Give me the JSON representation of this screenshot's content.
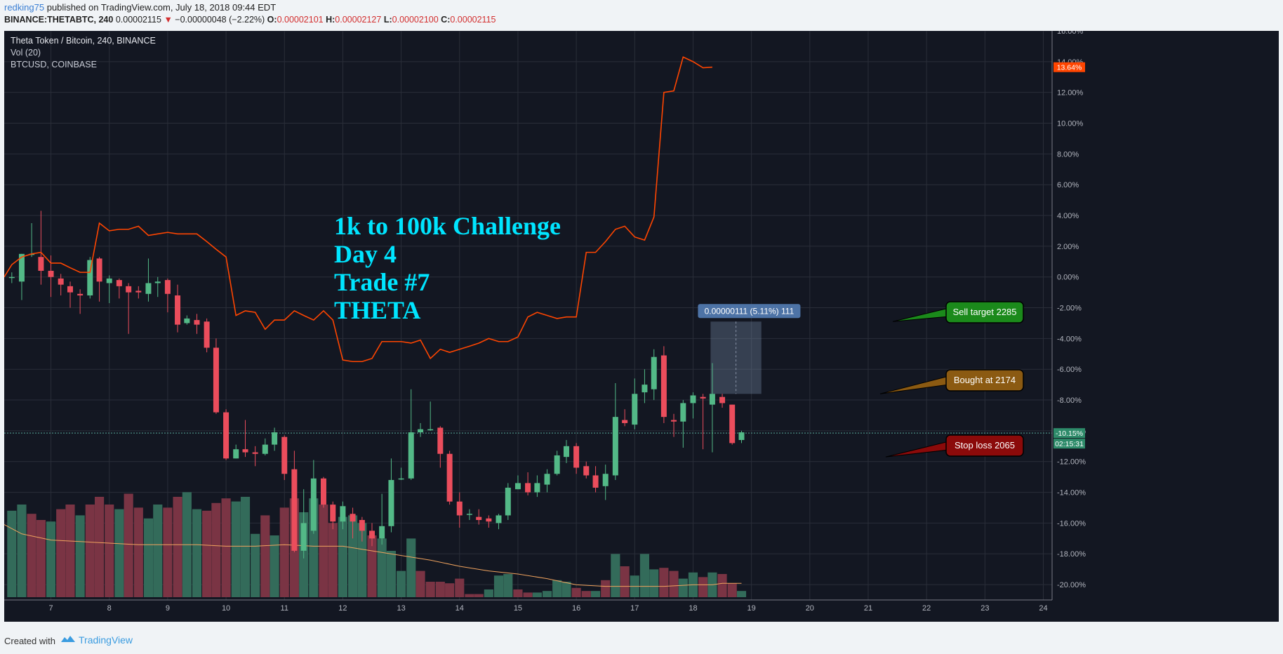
{
  "header": {
    "user": "redking75",
    "published": " published on TradingView.com, July 18, 2018 09:44 EDT",
    "symbol": "BINANCE:THETABTC, 240",
    "last": "0.00002115",
    "arrow": "▼",
    "change": "−0.00000048 (−2.22%)",
    "o_label": "O:",
    "o_value": "0.00002101",
    "h_label": "H:",
    "h_value": "0.00002127",
    "l_label": "L:",
    "l_value": "0.00002100",
    "c_label": "C:",
    "c_value": "0.00002115"
  },
  "legend": {
    "symbol": "Theta Token / Bitcoin, 240, BINANCE",
    "volume": "Vol (20)",
    "compare": "BTCUSD, COINBASE"
  },
  "annotations": {
    "title_lines": [
      "1k to 100k Challenge",
      "Day 4",
      "Trade #7",
      "THETA"
    ],
    "measure": "0.00000111 (5.11%) 111",
    "sell": "Sell target 2285",
    "bought": "Bought at 2174",
    "stop": "Stop loss 2065"
  },
  "price_badge": "-10.15%",
  "countdown": "02:15:31",
  "btc_badge": "13.64%",
  "footer": {
    "created": "Created with",
    "brand": "TradingView"
  },
  "colors": {
    "background": "#131722",
    "up": "#53b987",
    "down": "#eb4d5c",
    "btc_line": "#ff4500",
    "vol_ma": "#f0a35e",
    "title": "#00e5ff",
    "sell_callout": "#1b8a1b",
    "bought_callout": "#8b5a12",
    "stop_callout": "#8b0a0a"
  },
  "chart_data": {
    "type": "candlestick",
    "y_axis_unit": "percent",
    "ylim": [
      -21,
      16
    ],
    "y_ticks": [
      "16.00%",
      "14.00%",
      "12.00%",
      "10.00%",
      "8.00%",
      "6.00%",
      "4.00%",
      "2.00%",
      "0.00%",
      "-2.00%",
      "-4.00%",
      "-6.00%",
      "-8.00%",
      "-10.00%",
      "-12.00%",
      "-14.00%",
      "-16.00%",
      "-18.00%",
      "-20.00%"
    ],
    "y_tick_values": [
      16,
      14,
      12,
      10,
      8,
      6,
      4,
      2,
      0,
      -2,
      -4,
      -6,
      -8,
      -10,
      -12,
      -14,
      -16,
      -18,
      -20
    ],
    "x_ticks": [
      "7",
      "8",
      "9",
      "10",
      "11",
      "12",
      "13",
      "14",
      "15",
      "16",
      "17",
      "18",
      "19",
      "20",
      "21",
      "22",
      "23",
      "24"
    ],
    "x_tick_values": [
      7,
      8,
      9,
      10,
      11,
      12,
      13,
      14,
      15,
      16,
      17,
      18,
      19,
      20,
      21,
      22,
      23,
      24
    ],
    "xlim": [
      6.2,
      24.15
    ],
    "candles": [
      [
        6.33,
        0.0,
        0.0,
        -0.4,
        0.3
      ],
      [
        6.5,
        -0.3,
        1.5,
        -1.5,
        1.5
      ],
      [
        6.67,
        1.5,
        1.5,
        3.5,
        1.3
      ],
      [
        6.83,
        1.3,
        0.4,
        4.3,
        -0.5
      ],
      [
        7.0,
        0.4,
        0.0,
        1.4,
        -1.3
      ],
      [
        7.17,
        -0.1,
        -0.5,
        0.2,
        -1.2
      ],
      [
        7.33,
        -0.6,
        -1.0,
        -0.3,
        -2.0
      ],
      [
        7.5,
        -1.1,
        -1.2,
        -0.8,
        -2.4
      ],
      [
        7.67,
        -1.2,
        1.1,
        1.3,
        -1.4
      ],
      [
        7.83,
        1.2,
        -0.3,
        1.3,
        -1.6
      ],
      [
        8.0,
        -0.4,
        -0.1,
        0.1,
        -1.7
      ],
      [
        8.17,
        -0.2,
        -0.6,
        -0.1,
        -1.4
      ],
      [
        8.33,
        -0.6,
        -1.0,
        -0.4,
        -3.7
      ],
      [
        8.5,
        -0.9,
        -1.0,
        -0.6,
        -1.4
      ],
      [
        8.67,
        -1.1,
        -0.4,
        1.2,
        -1.6
      ],
      [
        8.83,
        -0.4,
        -0.3,
        0.0,
        -1.3
      ],
      [
        9.0,
        -0.2,
        -1.1,
        -0.1,
        -2.3
      ],
      [
        9.17,
        -1.2,
        -3.1,
        -0.5,
        -3.6
      ],
      [
        9.33,
        -3.0,
        -2.7,
        -2.5,
        -3.1
      ],
      [
        9.5,
        -2.8,
        -3.1,
        -2.4,
        -3.7
      ],
      [
        9.67,
        -2.9,
        -4.6,
        -2.7,
        -4.9
      ],
      [
        9.83,
        -4.6,
        -8.8,
        -4.0,
        -8.9
      ],
      [
        10.0,
        -8.8,
        -11.8,
        -8.6,
        -11.9
      ],
      [
        10.17,
        -11.8,
        -11.2,
        -10.9,
        -11.8
      ],
      [
        10.33,
        -11.2,
        -11.4,
        -9.3,
        -11.7
      ],
      [
        10.5,
        -11.4,
        -11.5,
        -11.0,
        -12.3
      ],
      [
        10.67,
        -11.5,
        -10.9,
        -10.5,
        -11.6
      ],
      [
        10.83,
        -10.9,
        -10.1,
        -9.8,
        -11.3
      ],
      [
        11.0,
        -10.4,
        -12.8,
        -10.3,
        -13.2
      ],
      [
        11.17,
        -12.5,
        -17.8,
        -11.3,
        -17.9
      ],
      [
        11.33,
        -17.8,
        -16.0,
        -13.8,
        -18.3
      ],
      [
        11.5,
        -16.5,
        -13.1,
        -11.9,
        -16.7
      ],
      [
        11.67,
        -13.1,
        -14.8,
        -13.0,
        -15.0
      ],
      [
        11.83,
        -14.8,
        -15.9,
        -14.6,
        -16.4
      ],
      [
        12.0,
        -15.9,
        -14.9,
        -14.6,
        -16.4
      ],
      [
        12.17,
        -15.4,
        -15.9,
        -15.0,
        -17.0
      ],
      [
        12.33,
        -15.8,
        -16.5,
        -15.6,
        -17.2
      ],
      [
        12.5,
        -16.5,
        -17.0,
        -16.0,
        -17.5
      ],
      [
        12.67,
        -17.0,
        -16.2,
        -14.1,
        -17.4
      ],
      [
        12.83,
        -16.2,
        -13.2,
        -11.8,
        -16.6
      ],
      [
        13.0,
        -13.1,
        -13.1,
        -12.4,
        -13.2
      ],
      [
        13.17,
        -13.1,
        -10.1,
        -7.3,
        -13.2
      ],
      [
        13.33,
        -10.1,
        -9.9,
        -9.5,
        -10.4
      ],
      [
        13.5,
        -9.9,
        -9.9,
        -8.1,
        -10.0
      ],
      [
        13.67,
        -9.8,
        -11.5,
        -9.7,
        -12.4
      ],
      [
        13.83,
        -11.5,
        -14.6,
        -11.3,
        -14.8
      ],
      [
        14.0,
        -14.6,
        -15.5,
        -14.0,
        -16.3
      ],
      [
        14.17,
        -15.4,
        -15.4,
        -15.1,
        -15.8
      ],
      [
        14.33,
        -15.6,
        -15.8,
        -15.1,
        -16.1
      ],
      [
        14.5,
        -15.7,
        -15.9,
        -15.5,
        -16.3
      ],
      [
        14.67,
        -16.0,
        -15.5,
        -15.4,
        -16.4
      ],
      [
        14.83,
        -15.5,
        -13.7,
        -13.4,
        -15.8
      ],
      [
        15.0,
        -13.8,
        -13.4,
        -12.9,
        -13.8
      ],
      [
        15.17,
        -13.4,
        -14.0,
        -12.7,
        -14.2
      ],
      [
        15.33,
        -14.0,
        -13.4,
        -12.9,
        -14.3
      ],
      [
        15.5,
        -13.5,
        -12.8,
        -12.5,
        -14.0
      ],
      [
        15.67,
        -12.8,
        -11.6,
        -11.3,
        -12.9
      ],
      [
        15.83,
        -11.7,
        -11.0,
        -10.6,
        -12.1
      ],
      [
        16.0,
        -11.0,
        -12.4,
        -10.8,
        -12.8
      ],
      [
        16.17,
        -12.3,
        -12.9,
        -12.0,
        -13.1
      ],
      [
        16.33,
        -12.9,
        -13.7,
        -12.3,
        -14.0
      ],
      [
        16.5,
        -13.6,
        -12.8,
        -12.2,
        -14.5
      ],
      [
        16.67,
        -12.9,
        -9.1,
        -6.9,
        -13.2
      ],
      [
        16.83,
        -9.3,
        -9.5,
        -8.6,
        -9.7
      ],
      [
        17.0,
        -9.6,
        -7.6,
        -6.6,
        -9.9
      ],
      [
        17.17,
        -7.5,
        -7.0,
        -6.0,
        -8.2
      ],
      [
        17.33,
        -7.3,
        -5.2,
        -4.7,
        -8.0
      ],
      [
        17.5,
        -5.1,
        -9.1,
        -4.5,
        -9.5
      ],
      [
        17.67,
        -9.3,
        -9.4,
        -8.9,
        -10.4
      ],
      [
        17.83,
        -9.4,
        -8.2,
        -8.0,
        -11.1
      ],
      [
        18.0,
        -8.2,
        -7.7,
        -7.5,
        -9.2
      ],
      [
        18.17,
        -7.8,
        -7.9,
        -7.6,
        -11.2
      ],
      [
        18.33,
        -8.3,
        -7.6,
        -5.6,
        -11.4
      ],
      [
        18.5,
        -7.8,
        -8.2,
        -7.6,
        -8.5
      ],
      [
        18.67,
        -8.3,
        -10.8,
        -8.3,
        -10.9
      ],
      [
        18.83,
        -10.6,
        -10.1,
        -10.0,
        -10.8
      ]
    ],
    "volume": [
      [
        6.33,
        56,
        "up"
      ],
      [
        6.5,
        60,
        "up"
      ],
      [
        6.67,
        54,
        "down"
      ],
      [
        6.83,
        50,
        "down"
      ],
      [
        7.0,
        49,
        "up"
      ],
      [
        7.17,
        57,
        "down"
      ],
      [
        7.33,
        60,
        "down"
      ],
      [
        7.5,
        53,
        "up"
      ],
      [
        7.67,
        60,
        "down"
      ],
      [
        7.83,
        65,
        "down"
      ],
      [
        8.0,
        60,
        "down"
      ],
      [
        8.17,
        57,
        "up"
      ],
      [
        8.33,
        67,
        "down"
      ],
      [
        8.5,
        58,
        "down"
      ],
      [
        8.67,
        51,
        "up"
      ],
      [
        8.83,
        60,
        "up"
      ],
      [
        9.0,
        58,
        "down"
      ],
      [
        9.17,
        65,
        "down"
      ],
      [
        9.33,
        68,
        "up"
      ],
      [
        9.5,
        57,
        "up"
      ],
      [
        9.67,
        56,
        "down"
      ],
      [
        9.83,
        61,
        "down"
      ],
      [
        10.0,
        64,
        "down"
      ],
      [
        10.17,
        62,
        "up"
      ],
      [
        10.33,
        65,
        "up"
      ],
      [
        10.5,
        41,
        "up"
      ],
      [
        10.67,
        53,
        "down"
      ],
      [
        10.83,
        40,
        "up"
      ],
      [
        11.0,
        58,
        "down"
      ],
      [
        11.17,
        64,
        "down"
      ],
      [
        11.33,
        55,
        "up"
      ],
      [
        11.5,
        64,
        "up"
      ],
      [
        11.67,
        60,
        "down"
      ],
      [
        11.83,
        48,
        "down"
      ],
      [
        12.0,
        52,
        "up"
      ],
      [
        12.17,
        53,
        "up"
      ],
      [
        12.33,
        48,
        "up"
      ],
      [
        12.5,
        40,
        "down"
      ],
      [
        12.67,
        38,
        "up"
      ],
      [
        12.83,
        30,
        "up"
      ],
      [
        13.0,
        17,
        "up"
      ],
      [
        13.17,
        38,
        "up"
      ],
      [
        13.33,
        17,
        "down"
      ],
      [
        13.5,
        10,
        "down"
      ],
      [
        13.67,
        10,
        "down"
      ],
      [
        13.83,
        9,
        "down"
      ],
      [
        14.0,
        12,
        "down"
      ],
      [
        14.17,
        2,
        "down"
      ],
      [
        14.33,
        2,
        "down"
      ],
      [
        14.5,
        5,
        "up"
      ],
      [
        14.67,
        14,
        "up"
      ],
      [
        14.83,
        15,
        "up"
      ],
      [
        15.0,
        5,
        "down"
      ],
      [
        15.17,
        3,
        "down"
      ],
      [
        15.33,
        3,
        "up"
      ],
      [
        15.5,
        4,
        "up"
      ],
      [
        15.67,
        11,
        "up"
      ],
      [
        15.83,
        10,
        "up"
      ],
      [
        16.0,
        6,
        "down"
      ],
      [
        16.17,
        4,
        "down"
      ],
      [
        16.33,
        4,
        "up"
      ],
      [
        16.5,
        11,
        "down"
      ],
      [
        16.67,
        28,
        "up"
      ],
      [
        16.83,
        20,
        "down"
      ],
      [
        17.0,
        14,
        "up"
      ],
      [
        17.17,
        28,
        "up"
      ],
      [
        17.33,
        18,
        "up"
      ],
      [
        17.5,
        19,
        "down"
      ],
      [
        17.67,
        17,
        "down"
      ],
      [
        17.83,
        12,
        "up"
      ],
      [
        18.0,
        16,
        "up"
      ],
      [
        18.17,
        13,
        "down"
      ],
      [
        18.33,
        16,
        "up"
      ],
      [
        18.5,
        15,
        "down"
      ],
      [
        18.67,
        9,
        "down"
      ],
      [
        18.83,
        4,
        "up"
      ]
    ],
    "volume_ma": [
      [
        6.2,
        47
      ],
      [
        6.5,
        41
      ],
      [
        7.0,
        37
      ],
      [
        7.5,
        36
      ],
      [
        8.0,
        35
      ],
      [
        8.5,
        34
      ],
      [
        9.0,
        34
      ],
      [
        9.5,
        34
      ],
      [
        10.0,
        33
      ],
      [
        10.5,
        33
      ],
      [
        11.0,
        34
      ],
      [
        11.5,
        33
      ],
      [
        12.0,
        33
      ],
      [
        12.5,
        30
      ],
      [
        13.0,
        27
      ],
      [
        13.5,
        24
      ],
      [
        14.0,
        20
      ],
      [
        14.5,
        17
      ],
      [
        15.0,
        15
      ],
      [
        15.5,
        12
      ],
      [
        16.0,
        8
      ],
      [
        16.5,
        7
      ],
      [
        17.0,
        7
      ],
      [
        17.5,
        7
      ],
      [
        18.0,
        8
      ],
      [
        18.33,
        8
      ],
      [
        18.5,
        9
      ],
      [
        18.83,
        9
      ]
    ],
    "btcusd_pct": [
      [
        6.2,
        0.0
      ],
      [
        6.33,
        0.8
      ],
      [
        6.5,
        1.3
      ],
      [
        6.67,
        1.5
      ],
      [
        6.83,
        1.6
      ],
      [
        7.0,
        0.9
      ],
      [
        7.17,
        0.9
      ],
      [
        7.33,
        0.6
      ],
      [
        7.5,
        0.3
      ],
      [
        7.67,
        0.3
      ],
      [
        7.83,
        3.5
      ],
      [
        8.0,
        3.0
      ],
      [
        8.17,
        3.1
      ],
      [
        8.33,
        3.1
      ],
      [
        8.5,
        3.3
      ],
      [
        8.67,
        2.7
      ],
      [
        8.83,
        2.8
      ],
      [
        9.0,
        2.9
      ],
      [
        9.17,
        2.8
      ],
      [
        9.33,
        2.8
      ],
      [
        9.5,
        2.8
      ],
      [
        9.67,
        2.3
      ],
      [
        9.83,
        1.8
      ],
      [
        10.0,
        1.3
      ],
      [
        10.17,
        -2.5
      ],
      [
        10.33,
        -2.2
      ],
      [
        10.5,
        -2.3
      ],
      [
        10.67,
        -3.4
      ],
      [
        10.83,
        -2.8
      ],
      [
        11.0,
        -2.8
      ],
      [
        11.17,
        -2.2
      ],
      [
        11.33,
        -2.5
      ],
      [
        11.5,
        -2.8
      ],
      [
        11.67,
        -2.2
      ],
      [
        11.83,
        -2.8
      ],
      [
        12.0,
        -5.4
      ],
      [
        12.17,
        -5.5
      ],
      [
        12.33,
        -5.5
      ],
      [
        12.5,
        -5.3
      ],
      [
        12.67,
        -4.2
      ],
      [
        12.83,
        -4.2
      ],
      [
        13.0,
        -4.2
      ],
      [
        13.17,
        -4.3
      ],
      [
        13.33,
        -4.1
      ],
      [
        13.5,
        -5.3
      ],
      [
        13.67,
        -4.7
      ],
      [
        13.83,
        -4.9
      ],
      [
        14.0,
        -4.7
      ],
      [
        14.17,
        -4.5
      ],
      [
        14.33,
        -4.3
      ],
      [
        14.5,
        -4.0
      ],
      [
        14.67,
        -4.2
      ],
      [
        14.83,
        -4.2
      ],
      [
        15.0,
        -3.9
      ],
      [
        15.17,
        -2.6
      ],
      [
        15.33,
        -2.3
      ],
      [
        15.5,
        -2.5
      ],
      [
        15.67,
        -2.7
      ],
      [
        15.83,
        -2.6
      ],
      [
        16.0,
        -2.6
      ],
      [
        16.17,
        1.6
      ],
      [
        16.33,
        1.6
      ],
      [
        16.5,
        2.3
      ],
      [
        16.67,
        3.1
      ],
      [
        16.83,
        3.3
      ],
      [
        17.0,
        2.6
      ],
      [
        17.17,
        2.4
      ],
      [
        17.33,
        3.9
      ],
      [
        17.5,
        12.0
      ],
      [
        17.67,
        12.1
      ],
      [
        17.83,
        14.3
      ],
      [
        18.0,
        14.0
      ],
      [
        18.17,
        13.6
      ],
      [
        18.33,
        13.64
      ]
    ],
    "current_pct": -10.15,
    "measure_box": {
      "x0": 18.3,
      "x1": 19.17,
      "y_top": -2.9,
      "y_bottom": -7.6
    }
  }
}
